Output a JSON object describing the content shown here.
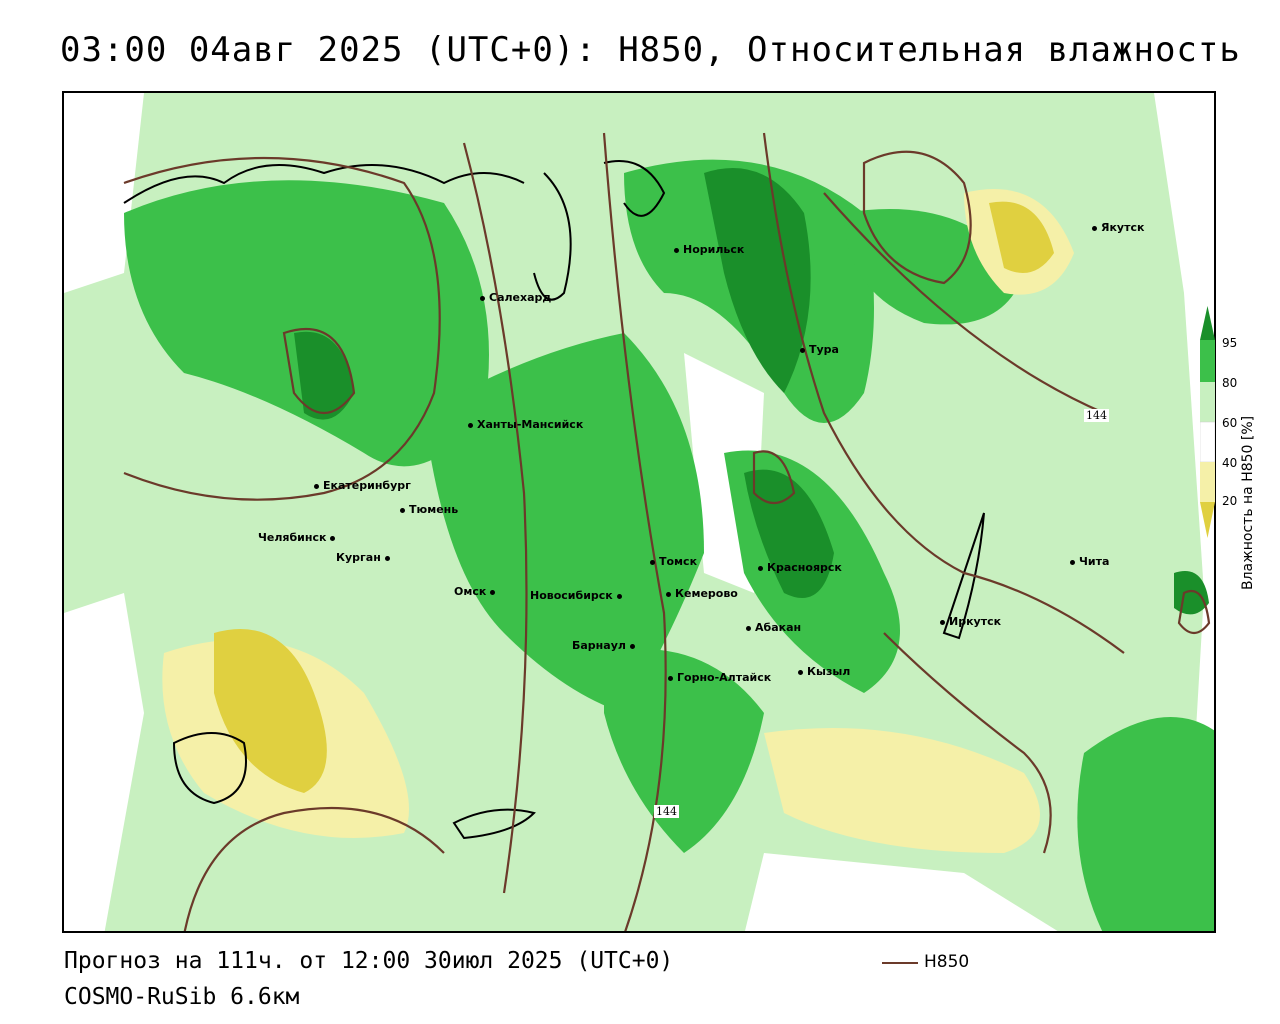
{
  "title": "03:00 04авг 2025 (UTC+0): H850, Относительная влажность",
  "footer": {
    "forecast": "Прогноз на 111ч. от 12:00 30июл 2025 (UTC+0)",
    "model": "COSMO-RuSib 6.6км"
  },
  "legend": {
    "line_label": "H850",
    "line_color": "#6b3a2a"
  },
  "colorbar": {
    "label": "Влажность на H850 [%]",
    "ticks": [
      "95",
      "80",
      "60",
      "40",
      "20"
    ],
    "colors": {
      "gt95": "#1a8f2a",
      "80_95": "#3cc04a",
      "60_80": "#c8f0c0",
      "20_40": "#f5f0a8",
      "lt20": "#e0d040"
    }
  },
  "contour_labels": [
    "144",
    "144"
  ],
  "cities": [
    {
      "name": "Якутск"
    },
    {
      "name": "Норильск"
    },
    {
      "name": "Салехард"
    },
    {
      "name": "Тура"
    },
    {
      "name": "Ханты-Мансийск"
    },
    {
      "name": "Екатеринбург"
    },
    {
      "name": "Тюмень"
    },
    {
      "name": "Челябинск"
    },
    {
      "name": "Курган"
    },
    {
      "name": "Омск"
    },
    {
      "name": "Новосибирск"
    },
    {
      "name": "Томск"
    },
    {
      "name": "Кемерово"
    },
    {
      "name": "Красноярск"
    },
    {
      "name": "Абакан"
    },
    {
      "name": "Барнаул"
    },
    {
      "name": "Горно-Алтайск"
    },
    {
      "name": "Кызыл"
    },
    {
      "name": "Иркутск"
    },
    {
      "name": "Чита"
    }
  ]
}
